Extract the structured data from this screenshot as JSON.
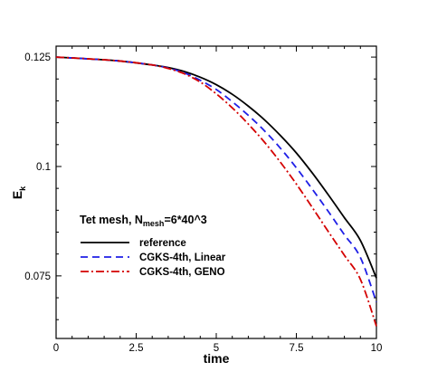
{
  "chart_data": {
    "type": "line",
    "xlabel": "time",
    "ylabel": "E",
    "ylabel_subscript": "k",
    "xlim": [
      0,
      10
    ],
    "ylim": [
      0.0607,
      0.1275
    ],
    "xticks": [
      0,
      2.5,
      5,
      7.5,
      10
    ],
    "xtick_labels": [
      "0",
      "2.5",
      "5",
      "7.5",
      "10"
    ],
    "yticks": [
      0.075,
      0.1,
      0.125
    ],
    "ytick_labels": [
      "0.075",
      "0.1",
      "0.125"
    ],
    "grid": false,
    "legend": {
      "position": "inside-left",
      "title_main": "Tet mesh, N",
      "title_sub": "mesh",
      "title_tail": "=6*40^3"
    },
    "series": [
      {
        "name": "reference",
        "color": "#000000",
        "style": "solid",
        "x": [
          0,
          1,
          2,
          3,
          3.5,
          4,
          4.5,
          5,
          5.5,
          6,
          6.5,
          7,
          7.5,
          8,
          8.5,
          9,
          9.5,
          10
        ],
        "y": [
          0.125,
          0.1246,
          0.1241,
          0.1232,
          0.1226,
          0.1217,
          0.1204,
          0.1187,
          0.1165,
          0.1138,
          0.1107,
          0.1071,
          0.1031,
          0.0985,
          0.0935,
          0.0883,
          0.0831,
          0.0745
        ]
      },
      {
        "name": "CGKS-4th, Linear",
        "color": "#1f1fe6",
        "style": "dashed",
        "x": [
          0,
          1,
          2,
          3,
          3.5,
          4,
          4.5,
          5,
          5.5,
          6,
          6.5,
          7,
          7.5,
          8,
          8.5,
          9,
          9.5,
          10
        ],
        "y": [
          0.125,
          0.1246,
          0.1241,
          0.1232,
          0.1225,
          0.1214,
          0.1197,
          0.1176,
          0.1148,
          0.1117,
          0.1082,
          0.1042,
          0.0997,
          0.0948,
          0.0897,
          0.0844,
          0.0792,
          0.069
        ]
      },
      {
        "name": "CGKS-4th, GENO",
        "color": "#d40000",
        "style": "dashdot",
        "x": [
          0,
          1,
          2,
          3,
          3.5,
          4,
          4.5,
          5,
          5.5,
          6,
          6.5,
          7,
          7.5,
          8,
          8.5,
          9,
          9.5,
          10
        ],
        "y": [
          0.125,
          0.1246,
          0.1241,
          0.1232,
          0.1224,
          0.1212,
          0.1193,
          0.1166,
          0.1134,
          0.1097,
          0.1056,
          0.101,
          0.096,
          0.0906,
          0.0851,
          0.0797,
          0.0742,
          0.0635
        ]
      }
    ]
  }
}
